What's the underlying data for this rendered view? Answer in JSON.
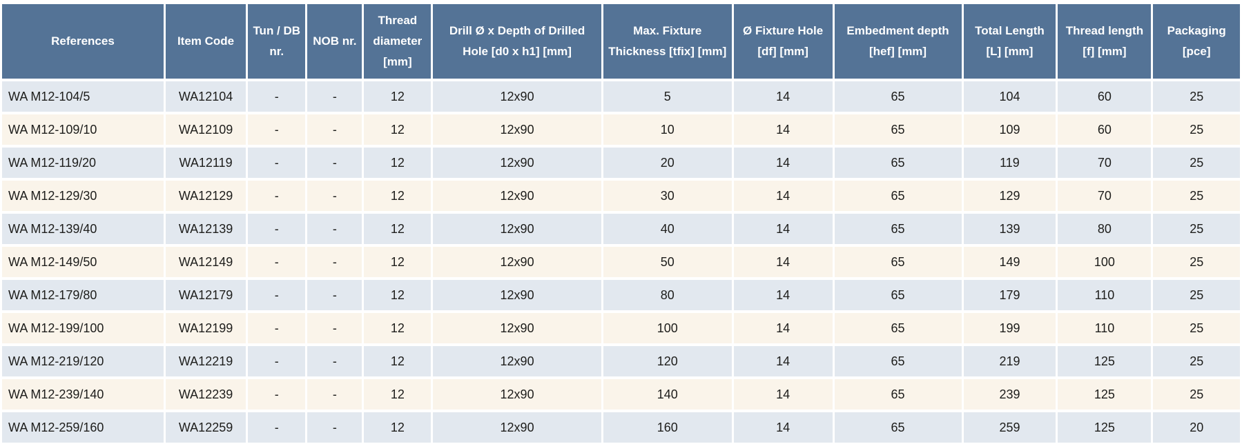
{
  "colors": {
    "header_background": "#547396",
    "header_text": "#ffffff",
    "row_alt_blue": "#e2e8ef",
    "row_alt_cream": "#faf4ea",
    "cell_text": "#1d1d1b",
    "grid_lines": "#ffffff"
  },
  "table": {
    "columns": [
      "References",
      "Item Code",
      "Tun / DB nr.",
      "NOB nr.",
      "Thread diameter [mm]",
      "Drill Ø x Depth of Drilled Hole [d0 x h1] [mm]",
      "Max. Fixture Thickness [tfix] [mm]",
      "Ø Fixture Hole [df] [mm]",
      "Embedment depth [hef] [mm]",
      "Total Length [L] [mm]",
      "Thread length [f] [mm]",
      "Packaging [pce]"
    ],
    "rows": [
      [
        "WA M12-104/5",
        "WA12104",
        "-",
        "-",
        "12",
        "12x90",
        "5",
        "14",
        "65",
        "104",
        "60",
        "25"
      ],
      [
        "WA M12-109/10",
        "WA12109",
        "-",
        "-",
        "12",
        "12x90",
        "10",
        "14",
        "65",
        "109",
        "60",
        "25"
      ],
      [
        "WA M12-119/20",
        "WA12119",
        "-",
        "-",
        "12",
        "12x90",
        "20",
        "14",
        "65",
        "119",
        "70",
        "25"
      ],
      [
        "WA M12-129/30",
        "WA12129",
        "-",
        "-",
        "12",
        "12x90",
        "30",
        "14",
        "65",
        "129",
        "70",
        "25"
      ],
      [
        "WA M12-139/40",
        "WA12139",
        "-",
        "-",
        "12",
        "12x90",
        "40",
        "14",
        "65",
        "139",
        "80",
        "25"
      ],
      [
        "WA M12-149/50",
        "WA12149",
        "-",
        "-",
        "12",
        "12x90",
        "50",
        "14",
        "65",
        "149",
        "100",
        "25"
      ],
      [
        "WA M12-179/80",
        "WA12179",
        "-",
        "-",
        "12",
        "12x90",
        "80",
        "14",
        "65",
        "179",
        "110",
        "25"
      ],
      [
        "WA M12-199/100",
        "WA12199",
        "-",
        "-",
        "12",
        "12x90",
        "100",
        "14",
        "65",
        "199",
        "110",
        "25"
      ],
      [
        "WA M12-219/120",
        "WA12219",
        "-",
        "-",
        "12",
        "12x90",
        "120",
        "14",
        "65",
        "219",
        "125",
        "25"
      ],
      [
        "WA M12-239/140",
        "WA12239",
        "-",
        "-",
        "12",
        "12x90",
        "140",
        "14",
        "65",
        "239",
        "125",
        "25"
      ],
      [
        "WA M12-259/160",
        "WA12259",
        "-",
        "-",
        "12",
        "12x90",
        "160",
        "14",
        "65",
        "259",
        "125",
        "20"
      ]
    ]
  }
}
